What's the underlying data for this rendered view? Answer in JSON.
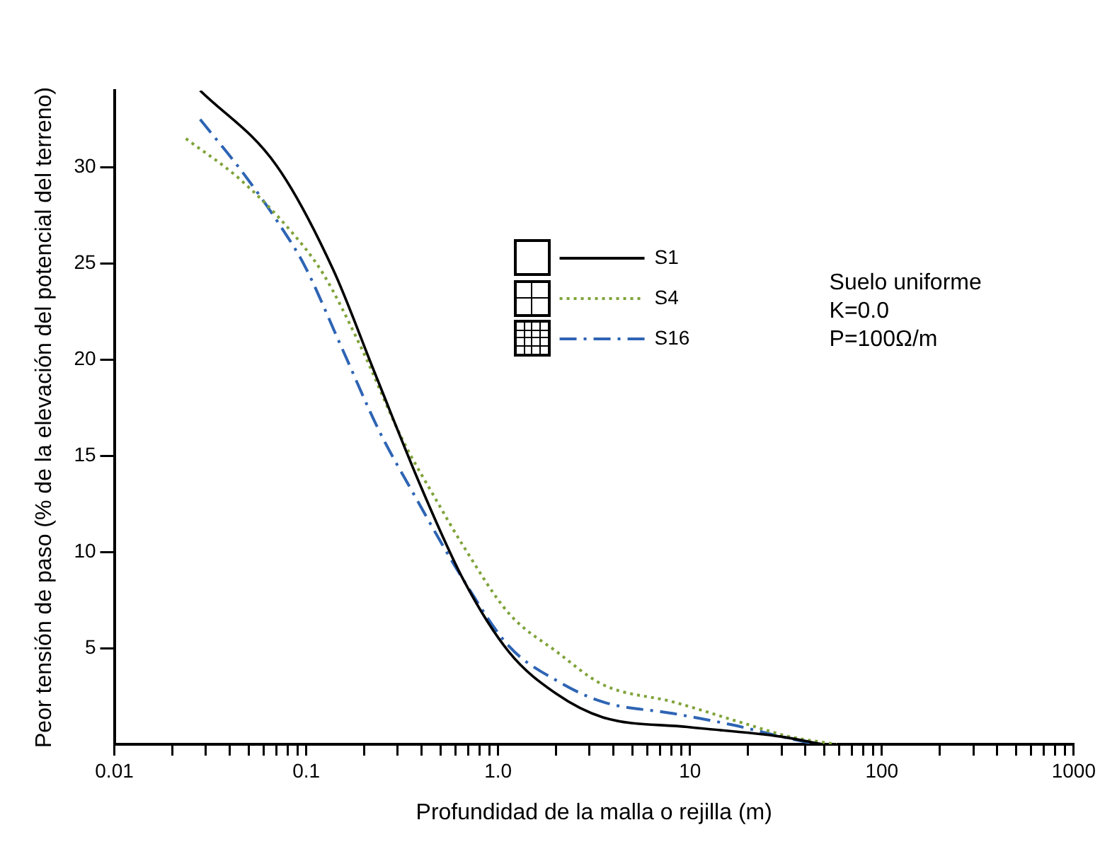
{
  "chart_data": {
    "type": "line",
    "xlabel": "Profundidad de la malla o rejilla (m)",
    "ylabel": "Peor tensión de paso (% de la elevación del potencial del terreno)",
    "log": "x",
    "xlim": [
      0.01,
      1000
    ],
    "ylim": [
      0,
      34
    ],
    "xticks": [
      {
        "value": 0.01,
        "label": "0.01"
      },
      {
        "value": 0.02,
        "label": null
      },
      {
        "value": 0.03,
        "label": null
      },
      {
        "value": 0.04,
        "label": null
      },
      {
        "value": 0.05,
        "label": null
      },
      {
        "value": 0.06,
        "label": null
      },
      {
        "value": 0.07,
        "label": null
      },
      {
        "value": 0.08,
        "label": null
      },
      {
        "value": 0.09,
        "label": null
      },
      {
        "value": 0.1,
        "label": "0.1"
      },
      {
        "value": 0.2,
        "label": null
      },
      {
        "value": 0.3,
        "label": null
      },
      {
        "value": 0.4,
        "label": null
      },
      {
        "value": 0.5,
        "label": null
      },
      {
        "value": 0.6,
        "label": null
      },
      {
        "value": 0.7,
        "label": null
      },
      {
        "value": 0.8,
        "label": null
      },
      {
        "value": 0.9,
        "label": null
      },
      {
        "value": 1,
        "label": "1.0"
      },
      {
        "value": 2,
        "label": null
      },
      {
        "value": 3,
        "label": null
      },
      {
        "value": 4,
        "label": null
      },
      {
        "value": 5,
        "label": null
      },
      {
        "value": 6,
        "label": null
      },
      {
        "value": 7,
        "label": null
      },
      {
        "value": 8,
        "label": null
      },
      {
        "value": 9,
        "label": null
      },
      {
        "value": 10,
        "label": "10"
      },
      {
        "value": 20,
        "label": null
      },
      {
        "value": 30,
        "label": null
      },
      {
        "value": 40,
        "label": null
      },
      {
        "value": 50,
        "label": null
      },
      {
        "value": 60,
        "label": null
      },
      {
        "value": 70,
        "label": null
      },
      {
        "value": 80,
        "label": null
      },
      {
        "value": 90,
        "label": null
      },
      {
        "value": 100,
        "label": "100"
      },
      {
        "value": 200,
        "label": null
      },
      {
        "value": 300,
        "label": null
      },
      {
        "value": 400,
        "label": null
      },
      {
        "value": 500,
        "label": null
      },
      {
        "value": 600,
        "label": null
      },
      {
        "value": 700,
        "label": null
      },
      {
        "value": 800,
        "label": null
      },
      {
        "value": 900,
        "label": null
      },
      {
        "value": 1000,
        "label": "1000"
      }
    ],
    "yticks": [
      5,
      10,
      15,
      20,
      25,
      30
    ],
    "grid": false,
    "legend": "top",
    "marker": "none",
    "annotations": [
      "Suelo uniforme",
      "K=0.0",
      "P=100Ω/m"
    ],
    "series": [
      {
        "name": "S1",
        "color": "#000000",
        "line_style": "solid",
        "x": [
          0.028,
          0.07,
          0.138,
          0.228,
          0.4,
          0.66,
          1.14,
          2.03,
          3.52,
          9.7,
          29.8,
          49
        ],
        "values": [
          34,
          30.1,
          24.7,
          19.3,
          13.3,
          8.55,
          4.8,
          2.6,
          1.4,
          0.9,
          0.4,
          0
        ]
      },
      {
        "name": "S4",
        "color": "#7fa33a",
        "line_style": "dotted",
        "x": [
          0.0236,
          0.045,
          0.083,
          0.122,
          0.192,
          0.319,
          0.47,
          0.66,
          1.14,
          2.03,
          3.52,
          8.2,
          19,
          33,
          58
        ],
        "values": [
          31.5,
          29.4,
          26.7,
          24.5,
          20.7,
          15.8,
          12.8,
          10.3,
          6.8,
          4.8,
          3.1,
          2.2,
          1.1,
          0.4,
          0
        ]
      },
      {
        "name": "S16",
        "color": "#2e64b4",
        "line_style": "dashed",
        "x": [
          0.028,
          0.047,
          0.074,
          0.098,
          0.152,
          0.24,
          0.35,
          0.66,
          1.14,
          2.03,
          3.52,
          8.2,
          16.8,
          33,
          46
        ],
        "values": [
          32.5,
          29.7,
          26.9,
          24.9,
          20.7,
          16.3,
          13.3,
          8.55,
          5.1,
          3.3,
          2.2,
          1.6,
          1,
          0.3,
          0
        ]
      }
    ]
  }
}
